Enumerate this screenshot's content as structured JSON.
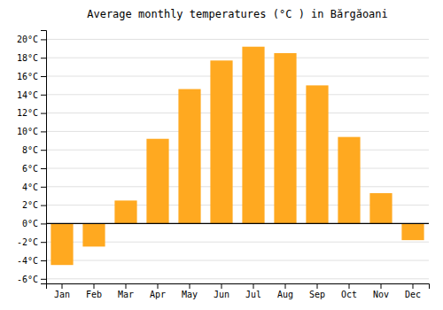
{
  "chart_data": {
    "type": "bar",
    "title": "Average monthly temperatures (°C ) in Bărgăoani",
    "categories": [
      "Jan",
      "Feb",
      "Mar",
      "Apr",
      "May",
      "Jun",
      "Jul",
      "Aug",
      "Sep",
      "Oct",
      "Nov",
      "Dec"
    ],
    "values": [
      -4.5,
      -2.5,
      2.5,
      9.2,
      14.6,
      17.7,
      19.2,
      18.5,
      15.0,
      9.4,
      3.3,
      -1.8
    ],
    "color": "#FFA920",
    "ylim": [
      -6.5,
      21
    ],
    "yticks": [
      {
        "value": -6,
        "label": "-6°C"
      },
      {
        "value": -4,
        "label": "-4°C"
      },
      {
        "value": -2,
        "label": "-2°C"
      },
      {
        "value": 0,
        "label": "0°C"
      },
      {
        "value": 2,
        "label": "2°C"
      },
      {
        "value": 4,
        "label": "4°C"
      },
      {
        "value": 6,
        "label": "6°C"
      },
      {
        "value": 8,
        "label": "8°C"
      },
      {
        "value": 10,
        "label": "10°C"
      },
      {
        "value": 12,
        "label": "12°C"
      },
      {
        "value": 14,
        "label": "14°C"
      },
      {
        "value": 16,
        "label": "16°C"
      },
      {
        "value": 18,
        "label": "18°C"
      },
      {
        "value": 20,
        "label": "20°C"
      }
    ],
    "grid": true
  }
}
